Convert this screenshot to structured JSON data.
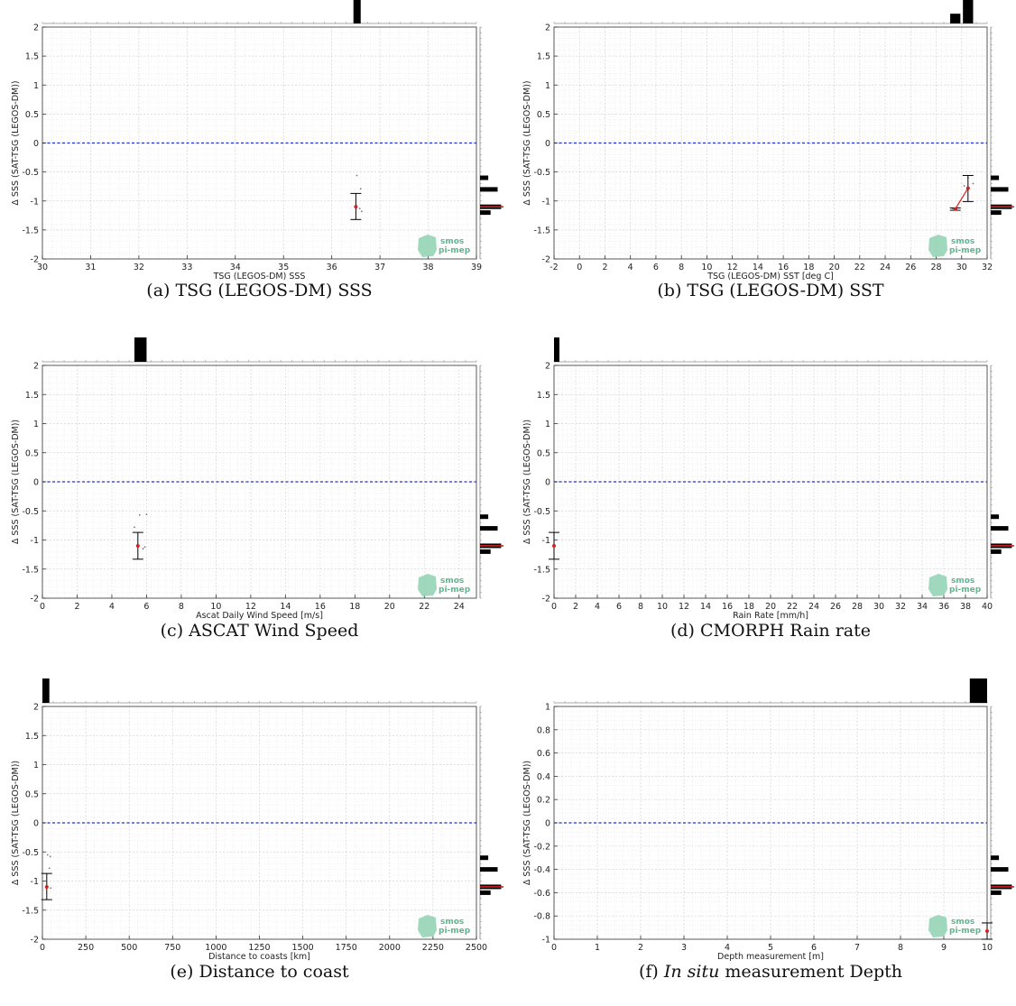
{
  "chart_data": [
    {
      "type": "scatter",
      "caption": "(a) TSG (LEGOS-DM) SSS",
      "xlabel": "TSG (LEGOS-DM) SSS",
      "ylabel": "Δ SSS (SAT-TSG (LEGOS-DM))",
      "xlim": [
        30,
        39
      ],
      "ylim": [
        -2,
        2
      ],
      "xticks": [
        30,
        31,
        32,
        33,
        34,
        35,
        36,
        37,
        38,
        39
      ],
      "yticks": [
        -2,
        -1.5,
        -1,
        -0.5,
        0,
        0.5,
        1,
        1.5,
        2
      ],
      "reference_line": 0,
      "grid": true,
      "points": [
        [
          36.52,
          -0.56
        ],
        [
          36.6,
          -0.79
        ],
        [
          36.58,
          -1.13
        ],
        [
          36.62,
          -1.18
        ]
      ],
      "bin_means": [
        {
          "x": 36.5,
          "mean": -1.1,
          "lo": -1.32,
          "hi": -0.87
        }
      ],
      "top_histogram": [
        {
          "x0": 36.45,
          "x1": 36.6,
          "h": 1
        }
      ],
      "right_histogram": [
        {
          "y": -0.6,
          "w": 0.35
        },
        {
          "y": -0.8,
          "w": 0.75
        },
        {
          "y": -1.1,
          "w": 0.9
        },
        {
          "y": -1.2,
          "w": 0.45
        }
      ],
      "hist_median": -1.1,
      "logo": {
        "line1": "smos",
        "line2": "pi-mep"
      }
    },
    {
      "type": "scatter",
      "caption": "(b) TSG (LEGOS-DM) SST",
      "xlabel": "TSG (LEGOS-DM) SST [deg C]",
      "ylabel": "Δ SSS (SAT-TSG (LEGOS-DM))",
      "xlim": [
        -2,
        32
      ],
      "ylim": [
        -2,
        2
      ],
      "xticks": [
        -2,
        0,
        2,
        4,
        6,
        8,
        10,
        12,
        14,
        16,
        18,
        20,
        22,
        24,
        26,
        28,
        30,
        32
      ],
      "yticks": [
        -2,
        -1.5,
        -1,
        -0.5,
        0,
        0.5,
        1,
        1.5,
        2
      ],
      "reference_line": 0,
      "grid": true,
      "points": [
        [
          29.3,
          -1.13
        ],
        [
          29.6,
          -1.15
        ],
        [
          30.2,
          -0.74
        ],
        [
          30.5,
          -0.6
        ],
        [
          30.9,
          -0.7
        ]
      ],
      "bin_means": [
        {
          "x": 29.5,
          "mean": -1.14,
          "lo": -1.16,
          "hi": -1.12
        },
        {
          "x": 30.5,
          "mean": -0.78,
          "lo": -1.01,
          "hi": -0.56
        }
      ],
      "top_histogram": [
        {
          "x0": 29.1,
          "x1": 29.9,
          "h": 0.4
        },
        {
          "x0": 30.1,
          "x1": 30.9,
          "h": 1
        }
      ],
      "right_histogram": [
        {
          "y": -0.6,
          "w": 0.35
        },
        {
          "y": -0.8,
          "w": 0.75
        },
        {
          "y": -1.1,
          "w": 0.9
        },
        {
          "y": -1.2,
          "w": 0.45
        }
      ],
      "hist_median": -1.1,
      "logo": {
        "line1": "smos",
        "line2": "pi-mep"
      }
    },
    {
      "type": "scatter",
      "caption": "(c) ASCAT Wind Speed",
      "xlabel": "Ascat Daily Wind Speed [m/s]",
      "ylabel": "Δ SSS (SAT-TSG (LEGOS-DM))",
      "xlim": [
        0,
        25
      ],
      "ylim": [
        -2,
        2
      ],
      "xticks": [
        0,
        2,
        4,
        6,
        8,
        10,
        12,
        14,
        16,
        18,
        20,
        22,
        24
      ],
      "yticks": [
        -2,
        -1.5,
        -1,
        -0.5,
        0,
        0.5,
        1,
        1.5,
        2
      ],
      "reference_line": 0,
      "grid": true,
      "points": [
        [
          5.6,
          -0.57
        ],
        [
          6.0,
          -0.56
        ],
        [
          5.3,
          -0.78
        ],
        [
          5.9,
          -1.12
        ],
        [
          5.8,
          -1.15
        ]
      ],
      "bin_means": [
        {
          "x": 5.5,
          "mean": -1.1,
          "lo": -1.33,
          "hi": -0.87
        }
      ],
      "top_histogram": [
        {
          "x0": 5.3,
          "x1": 6.0,
          "h": 1
        }
      ],
      "right_histogram": [
        {
          "y": -0.6,
          "w": 0.35
        },
        {
          "y": -0.8,
          "w": 0.75
        },
        {
          "y": -1.1,
          "w": 0.9
        },
        {
          "y": -1.2,
          "w": 0.45
        }
      ],
      "hist_median": -1.1,
      "logo": {
        "line1": "smos",
        "line2": "pi-mep"
      }
    },
    {
      "type": "scatter",
      "caption": "(d) CMORPH Rain rate",
      "xlabel": "Rain Rate [mm/h]",
      "ylabel": "Δ SSS (SAT-TSG (LEGOS-DM))",
      "xlim": [
        0,
        40
      ],
      "ylim": [
        -2,
        2
      ],
      "xticks": [
        0,
        2,
        4,
        6,
        8,
        10,
        12,
        14,
        16,
        18,
        20,
        22,
        24,
        26,
        28,
        30,
        32,
        34,
        36,
        38,
        40
      ],
      "yticks": [
        -2,
        -1.5,
        -1,
        -0.5,
        0,
        0.5,
        1,
        1.5,
        2
      ],
      "reference_line": 0,
      "grid": true,
      "points": [],
      "bin_means": [
        {
          "x": 0,
          "mean": -1.1,
          "lo": -1.33,
          "hi": -0.87
        }
      ],
      "top_histogram": [
        {
          "x0": 0,
          "x1": 0.5,
          "h": 1
        }
      ],
      "right_histogram": [
        {
          "y": -0.6,
          "w": 0.35
        },
        {
          "y": -0.8,
          "w": 0.75
        },
        {
          "y": -1.1,
          "w": 0.9
        },
        {
          "y": -1.2,
          "w": 0.45
        }
      ],
      "hist_median": -1.1,
      "logo": {
        "line1": "smos",
        "line2": "pi-mep"
      }
    },
    {
      "type": "scatter",
      "caption": "(e) Distance to coast",
      "xlabel": "Distance to coasts [km]",
      "ylabel": "Δ SSS (SAT-TSG (LEGOS-DM))",
      "xlim": [
        0,
        2500
      ],
      "ylim": [
        -2,
        2
      ],
      "xticks": [
        0,
        250,
        500,
        750,
        1000,
        1250,
        1500,
        1750,
        2000,
        2250,
        2500
      ],
      "yticks": [
        -2,
        -1.5,
        -1,
        -0.5,
        0,
        0.5,
        1,
        1.5,
        2
      ],
      "reference_line": 0,
      "grid": true,
      "points": [
        [
          30,
          -0.55
        ],
        [
          45,
          -0.58
        ],
        [
          40,
          -0.78
        ],
        [
          48,
          -1.12
        ]
      ],
      "bin_means": [
        {
          "x": 25,
          "mean": -1.1,
          "lo": -1.32,
          "hi": -0.87
        }
      ],
      "top_histogram": [
        {
          "x0": 0,
          "x1": 40,
          "h": 1
        }
      ],
      "right_histogram": [
        {
          "y": -0.6,
          "w": 0.35
        },
        {
          "y": -0.8,
          "w": 0.75
        },
        {
          "y": -1.1,
          "w": 0.9
        },
        {
          "y": -1.2,
          "w": 0.45
        }
      ],
      "hist_median": -1.1,
      "logo": {
        "line1": "smos",
        "line2": "pi-mep"
      }
    },
    {
      "type": "scatter",
      "caption_parts": [
        "(f) ",
        "In situ",
        " measurement Depth"
      ],
      "xlabel": "Depth measurement [m]",
      "ylabel": "Δ SSS (SAT-TSG (LEGOS-DM))",
      "xlim": [
        0,
        10
      ],
      "ylim": [
        -1,
        1
      ],
      "xticks": [
        0,
        1,
        2,
        3,
        4,
        5,
        6,
        7,
        8,
        9,
        10
      ],
      "yticks": [
        -1,
        -0.8,
        -0.6,
        -0.4,
        -0.2,
        0,
        0.2,
        0.4,
        0.6,
        0.8,
        1
      ],
      "reference_line": 0,
      "grid": true,
      "points": [],
      "bin_means": [
        {
          "x": 10,
          "mean": -0.93,
          "lo": -1.0,
          "hi": -0.86
        }
      ],
      "top_histogram": [
        {
          "x0": 9.6,
          "x1": 10,
          "h": 1
        }
      ],
      "right_histogram": [
        {
          "y": -0.3,
          "w": 0.35
        },
        {
          "y": -0.4,
          "w": 0.75
        },
        {
          "y": -0.55,
          "w": 0.9
        },
        {
          "y": -0.6,
          "w": 0.45
        }
      ],
      "hist_median": -0.55,
      "logo": {
        "line1": "smos",
        "line2": "pi-mep"
      }
    }
  ]
}
